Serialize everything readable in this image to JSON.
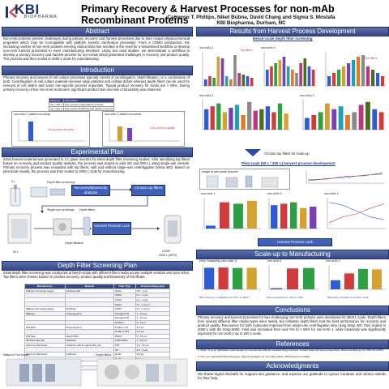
{
  "header": {
    "logo_text": "KBI",
    "logo_sub": "BIOPHARMA",
    "title": "Primary Recovery & Harvest Processes for non-mAb Recombinant Proteins",
    "authors": "Cameron T. Phillips, Niket Bubna, David Chang and Sigma S. Mostafa",
    "affiliation": "KBI Biopharma, Durham, NC"
  },
  "sections": {
    "abstract": "Abstract",
    "introduction": "Introduction",
    "experimental": "Experimental Plan",
    "depth_filter": "Depth Filter Screening Plan",
    "results": "Results from Harvest Process Development",
    "scaleup": "Scale-up to Manufacturing",
    "conclusions": "Conclusions",
    "references": "References",
    "acknowledgments": "Acknowledgments"
  },
  "text": {
    "abstract": "Non-mAb proteins present challenges during primary recovery and harvest processes due to their unique physicochemical properties which may be incompatible with platform harvest clarification processes. From a CDMO perspective, the increasing number of non-mAb proteins entering clinical trials has resulted in the need for a streamlined workflow to develop non-mAb harvest processes to meet manufacturing timelines. Using two case studies, we demonstrate a workflow to develop a primary recovery and harvest process for non-mAbs which presented challenges in recovery and product quality. The process was then scaled to 2000-L scale for manufacturing.",
    "introduction": "Primary recovery and harvest of cell culture processes typically consist of centrifugation, depth filtration, or a combination of both. Centrifugation of cell culture material removes large particles and cellular debris whereas depth filters can be used for removal of cell debris and some non-specific process impurities. Typical product recovery for mAbs are > 95%. During primary recovery of two non-mAb molecules, significant product loss and loss of bioactivity was observed.",
    "experimental": "Initial harvest material was generated in 3 L glass reactors for initial depth filter screening studies. After identifying top filters based on recovery and product quality analysis, the process was scaled to pilot (50 and 200 L) using single-use vessels. Primary recovery process was evaluated with top filters, with and without single-use centrifugation (kSep 400). Based on pilot-scale results, the process was then scaled to 2000 L SUB for manufacturing.",
    "depth_filter": "Initial depth filter screening was conducted at bench-scale with different filter media across multiple vendors and pore sizes. Top filters were chosen based on product recovery, product quality and bioactivity of the filtrate.",
    "conclusions": "Primary recovery and harvest processes for two challenging non-mAb proteins were developed for 2000 L scale. Depth filters from several different filter media types were tested, but cellulose depth filters had the best performance for recovery and product quality. Recoveries for both molecules improved from single-use centrifugation step using kSep 400, then scaled to 2000 L with the kSep 6000. Yield was increased from near 0% to > 90% for non-mAb 1, while bioactivity was significantly improved for non-mAb 2 up to 200 L scale.",
    "acknowledgments": "We thank Sigma Mostafa for support and guidance, and express our gratitude to Lynsei Cunanan and James Hamlin for their help."
  },
  "intro_table": {
    "rows": [
      [
        "Molecule",
        "Observation"
      ],
      [
        "non-mAb 1",
        "Poor recovery with platform process"
      ],
      [
        "non-mAb 2",
        "Low product bioactivity with platform process"
      ]
    ]
  },
  "intro_charts": {
    "left_title": "non-mAb 1 platform process",
    "right_title": "non-mAb 2 platform process",
    "left_note": "No product recovery",
    "right_note": "Low product quality"
  },
  "exp_plan": {
    "reactor": "3 L",
    "screen": "Depth filter screening",
    "recovery_btn": "Recovery/Bioactivity analysis",
    "choose_btn": "Choose top filters",
    "sucen": "Single-use centrifuge",
    "depth_filters": "Depth filters",
    "harvest_btn": "Harvest Process Lock",
    "pilot": "50 L",
    "filtration": "Depth filtration",
    "mfg": "2000 L (MFG)",
    "sub": "cGMP"
  },
  "filter_table": {
    "headers": [
      "Manufacturer",
      "Material",
      "Filter Type",
      "Nominal Range (µm)"
    ],
    "rows": [
      [
        "Millipore X0 (single stage)",
        "Cellulose/DE",
        "D0HC",
        "0.8 - 4 µm"
      ],
      [
        "",
        "",
        "X0HC",
        "0.1 - 2 µm"
      ],
      [
        "",
        "",
        "C0HC",
        "0.1 - 4 µm"
      ],
      [
        "",
        "",
        "F0HC",
        "0.1 - 0.2 µm"
      ],
      [
        "Millipore X0 (single stage)",
        "Synthetic",
        "X0SP",
        "0.1 - 0.2 µm"
      ],
      [
        "Millipore",
        "Polypropylene",
        "Polygard-CN",
        "1 - 10 µm"
      ],
      [
        "",
        "",
        "Polygard-CR",
        "2 - 10 µm"
      ],
      [
        "",
        "",
        "Profile II",
        "3 - 5 µm"
      ],
      [
        "Pall Filter",
        "Polypropylene",
        "Profile II 3.0",
        "3.0 µm"
      ],
      [
        "",
        "",
        "Profile II 150",
        "1.0 µm"
      ],
      [
        "Pall Stax",
        "Depth Filter",
        "PDK5",
        "5 - 15 µm"
      ],
      [
        "3M Zeta Plus 3M",
        "Cellulose",
        "10SP/30SP",
        "1 - 10 µm"
      ],
      [
        "Sartorius Sartoclear",
        "Cellulose with inorganic filter aid",
        "P15",
        "1.5 - 30 µm"
      ],
      [
        "",
        "",
        "S9",
        "0.5 - 5 µm"
      ],
      [
        "Sartorius Sartoclear",
        "Cellulose",
        "DL40",
        "0.8 µm"
      ],
      [
        "",
        "",
        "DL20",
        "0.2 µm"
      ],
      [
        "Sartorius Sartopure",
        "Glass Fiber",
        "GF Plus",
        "1 - 2 µm"
      ],
      [
        "Parker",
        "Glass Fiber",
        "Clarigard",
        "0.2 µm"
      ]
    ]
  },
  "bottom_left_labels": {
    "a": "Millipore Pod holder",
    "b": "Depth filters"
  },
  "results": {
    "bench_title": "Bench-scale depth filter screening",
    "mab1": "non-mAb 1",
    "mab2": "non-mAb 2",
    "top_filters": "Top filters",
    "choose_text": "Choose top filters for scale-up",
    "pilot_title": "Pilot-scale (50 L / 200 L) harvest process development",
    "pilot_pic_caption": "Image of pilot scale process",
    "harvest_lock": "Harvest Process Lock",
    "scale_left": "kSep Scalability (non-mAb 1)",
    "scale_mid": "non-mAb 1",
    "scale_right": "non-mAb 2",
    "scale_note1": "95% recovery in scalability from 50 L to 2000 L",
    "scale_note2": "Yield increased from ~0% to >90%",
    "scale_note3": "Bioactivity increased up to 200 L scale"
  },
  "references": [
    "1. Singh, N. et al. Clarification technologies for monoclonal antibody manufacturing processes: Current state and future perspectives. Biotechnol Bioeng 113, 698-716 (2016).",
    "2. Chen, D. Industrial Protein Recovery: Harvest strategies for non-mAb proteins. BioProcess Int. (2020)."
  ]
}
